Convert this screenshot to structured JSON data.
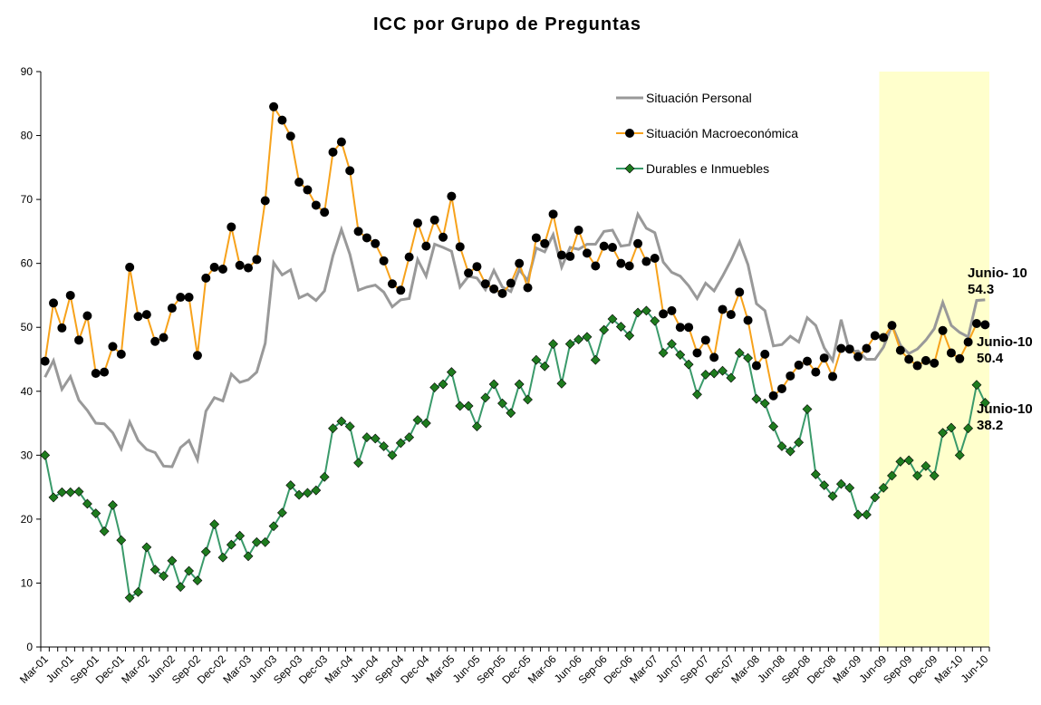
{
  "chart_data": {
    "type": "line",
    "title": "ICC por Grupo de Preguntas",
    "categories": [
      "Mar-01",
      null,
      null,
      "Jun-01",
      null,
      null,
      "Sep-01",
      null,
      null,
      "Dec-01",
      null,
      null,
      "Mar-02",
      null,
      null,
      "Jun-02",
      null,
      null,
      "Sep-02",
      null,
      null,
      "Dec-02",
      null,
      null,
      "Mar-03",
      null,
      null,
      "Jun-03",
      null,
      null,
      "Sep-03",
      null,
      null,
      "Dec-03",
      null,
      null,
      "Mar-04",
      null,
      null,
      "Jun-04",
      null,
      null,
      "Sep-04",
      null,
      null,
      "Dec-04",
      null,
      null,
      "Mar-05",
      null,
      null,
      "Jun-05",
      null,
      null,
      "Sep-05",
      null,
      null,
      "Dec-05",
      null,
      null,
      "Mar-06",
      null,
      null,
      "Jun-06",
      null,
      null,
      "Sep-06",
      null,
      null,
      "Dec-06",
      null,
      null,
      "Mar-07",
      null,
      null,
      "Jun-07",
      null,
      null,
      "Sep-07",
      null,
      null,
      "Dec-07",
      null,
      null,
      "Mar-08",
      null,
      null,
      "Jun-08",
      null,
      null,
      "Sep-08",
      null,
      null,
      "Dec-08",
      null,
      null,
      "Mar-09",
      null,
      null,
      "Jun-09",
      null,
      null,
      "Sep-09",
      null,
      null,
      "Dec-09",
      null,
      null,
      "Mar-10",
      null,
      null,
      "Jun-10"
    ],
    "series": [
      {
        "name": "Situación Personal",
        "color": "#999999",
        "marker": "none",
        "values": [
          42.2,
          44.8,
          40.3,
          42.3,
          38.6,
          37,
          35,
          34.9,
          33.5,
          31,
          35.2,
          32.3,
          30.9,
          30.4,
          28.3,
          28.2,
          31.2,
          32.3,
          29.3,
          36.9,
          39,
          38.5,
          42.7,
          41.4,
          41.8,
          43,
          47.5,
          60.1,
          58.2,
          59,
          54.6,
          55.2,
          54.2,
          55.7,
          61.2,
          65.3,
          61.4,
          55.8,
          56.3,
          56.6,
          55.5,
          53.2,
          54.3,
          54.5,
          60.6,
          58,
          63,
          62.5,
          61.9,
          56.3,
          58,
          57.7,
          55.9,
          58.9,
          56.3,
          55.6,
          59,
          57.3,
          62.4,
          61.8,
          64.5,
          59.4,
          62.5,
          62.2,
          63,
          63,
          65,
          65.2,
          62.7,
          62.9,
          67.7,
          65.5,
          64.8,
          60.2,
          58.6,
          58,
          56.5,
          54.5,
          56.9,
          55.7,
          58,
          60.5,
          63.4,
          59.8,
          53.7,
          52.6,
          47.1,
          47.3,
          48.6,
          47.7,
          51.5,
          50.3,
          46.8,
          44.8,
          51.2,
          46.2,
          46.3,
          45,
          45,
          46.9,
          50.3,
          47.2,
          45.9,
          46.6,
          48,
          49.8,
          53.9,
          50.3,
          49.2,
          48.5,
          54.2,
          54.3
        ]
      },
      {
        "name": "Situación Macroeconómica",
        "color": "#f7a21b",
        "marker": "circle",
        "marker_color": "#000000",
        "values": [
          44.7,
          53.8,
          49.9,
          55,
          48,
          51.8,
          42.8,
          43,
          47,
          45.8,
          59.4,
          51.7,
          52,
          47.8,
          48.4,
          53,
          54.7,
          54.7,
          45.6,
          57.7,
          59.4,
          59.1,
          65.7,
          59.7,
          59.3,
          60.6,
          69.8,
          84.5,
          82.4,
          79.9,
          72.7,
          71.5,
          69.1,
          68,
          77.4,
          79,
          74.5,
          65,
          64,
          63.1,
          60.4,
          56.8,
          55.8,
          61,
          66.3,
          62.7,
          66.8,
          64.1,
          70.5,
          62.6,
          58.5,
          59.5,
          56.8,
          56,
          55.3,
          56.9,
          60,
          56.2,
          64,
          63.1,
          67.7,
          61.3,
          61.1,
          65.2,
          61.6,
          59.6,
          62.7,
          62.5,
          60,
          59.6,
          63.1,
          60.3,
          60.8,
          52.1,
          52.6,
          50,
          50,
          46,
          48,
          45.3,
          52.8,
          52,
          55.5,
          51.1,
          44,
          45.8,
          39.3,
          40.4,
          42.4,
          44.1,
          44.7,
          43,
          45.2,
          42.3,
          46.7,
          46.6,
          45.4,
          46.7,
          48.7,
          48.4,
          50.3,
          46.4,
          45,
          44,
          44.8,
          44.4,
          49.5,
          46,
          45.1,
          47.7,
          50.6,
          50.4
        ]
      },
      {
        "name": "Durables e Inmuebles",
        "color": "#3a9a6a",
        "marker": "diamond",
        "marker_color": "#1e7b1e",
        "values": [
          30,
          23.4,
          24.2,
          24.2,
          24.3,
          22.4,
          20.9,
          18.1,
          22.2,
          16.7,
          7.7,
          8.6,
          15.6,
          12.1,
          11.1,
          13.5,
          9.4,
          11.9,
          10.4,
          14.9,
          19.2,
          14,
          16,
          17.4,
          14.2,
          16.4,
          16.4,
          18.9,
          21,
          25.3,
          23.8,
          24.1,
          24.5,
          26.6,
          34.2,
          35.3,
          34.5,
          28.8,
          32.8,
          32.6,
          31.4,
          30,
          31.9,
          32.8,
          35.5,
          35,
          40.6,
          41.1,
          43,
          37.7,
          37.7,
          34.5,
          39,
          41.1,
          38.1,
          36.6,
          41.1,
          38.7,
          44.9,
          43.9,
          47.4,
          41.2,
          47.4,
          48.1,
          48.5,
          44.9,
          49.6,
          51.3,
          50.1,
          48.7,
          52.3,
          52.6,
          51,
          46,
          47.4,
          45.7,
          44.2,
          39.5,
          42.6,
          42.8,
          43.2,
          42.1,
          46,
          45.2,
          38.8,
          38.1,
          34.5,
          31.4,
          30.6,
          32,
          37.2,
          27,
          25.3,
          23.6,
          25.5,
          24.9,
          20.7,
          20.7,
          23.4,
          24.9,
          26.8,
          29,
          29.2,
          26.8,
          28.3,
          26.8,
          33.5,
          34.3,
          30,
          34.2,
          41,
          38.2
        ]
      }
    ],
    "annotations": [
      {
        "text": "Junio- 10",
        "value": 54.3
      },
      {
        "text": "Junio-10",
        "value": 50.4
      },
      {
        "text": "Junio-10",
        "value": 38.2
      }
    ],
    "highlight_from": "Jun-09",
    "highlight_color": "#ffffcc",
    "ylim": [
      0,
      90
    ],
    "yticks": [
      0,
      10,
      20,
      30,
      40,
      50,
      60,
      70,
      80,
      90
    ],
    "grid": false,
    "legend": "upper right"
  }
}
